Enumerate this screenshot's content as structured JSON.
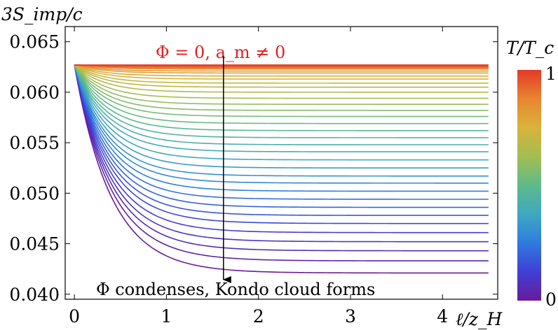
{
  "chart_data": {
    "type": "line",
    "title": "",
    "ylabel": "3S_imp/c",
    "xlabel": "ℓ/z_H",
    "xlim": [
      -0.1,
      4.6
    ],
    "ylim": [
      0.0395,
      0.0665
    ],
    "x_ticks": [
      "0",
      "1",
      "2",
      "3",
      "4"
    ],
    "y_ticks": [
      "0.040",
      "0.045",
      "0.050",
      "0.055",
      "0.060",
      "0.065"
    ],
    "x_tick_values": [
      0,
      1,
      2,
      3,
      4
    ],
    "y_tick_values": [
      0.04,
      0.045,
      0.05,
      0.055,
      0.06,
      0.065
    ],
    "grid": false,
    "curve_start": {
      "x": 0,
      "y": 0.0627
    },
    "x_end": 4.5,
    "series_note_T_over_Tc_from_low_to_high": true,
    "series_saturation_values": [
      0.0421,
      0.0433,
      0.0443,
      0.0452,
      0.0461,
      0.047,
      0.0478,
      0.0486,
      0.0494,
      0.0502,
      0.051,
      0.0517,
      0.0525,
      0.0533,
      0.0541,
      0.0548,
      0.0555,
      0.0562,
      0.0569,
      0.0576,
      0.0582,
      0.0588,
      0.0594,
      0.06,
      0.0605,
      0.0609,
      0.0613,
      0.0616,
      0.0619,
      0.0621,
      0.0623,
      0.0624,
      0.0625,
      0.0626,
      0.0626,
      0.0627
    ],
    "colorbar": {
      "label": "T/T_c",
      "min_label": "0",
      "max_label": "1",
      "colors": [
        "#6a1b9a",
        "#3f3fd6",
        "#2f7be0",
        "#3fa8c0",
        "#5dbb8a",
        "#a3bd52",
        "#d8b33a",
        "#e8852f",
        "#e23a28"
      ]
    },
    "annotations": {
      "top": "Φ = 0, a_m ≠ 0",
      "top_color": "#e02020",
      "bottom": "Φ condenses, Kondo cloud forms",
      "arrow_x": 1.62
    }
  }
}
